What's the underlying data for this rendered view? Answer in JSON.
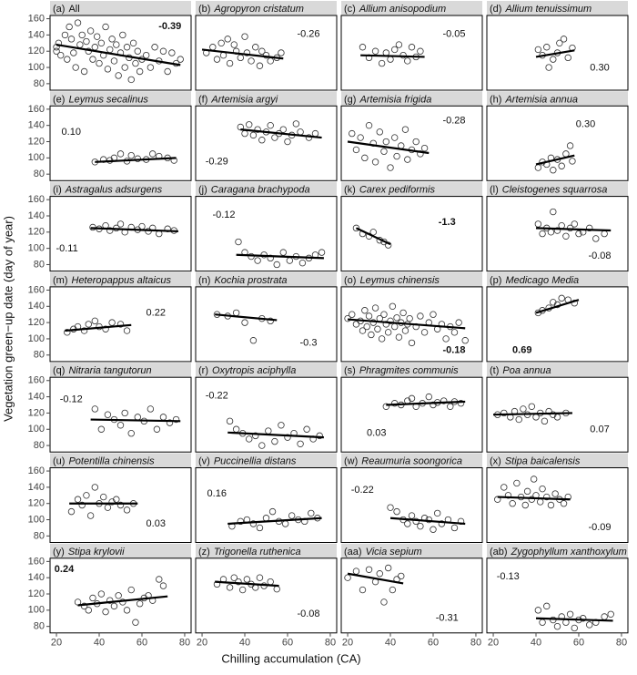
{
  "xlabel": "Chilling accumulation (CA)",
  "ylabel": "Vegetation green−up date (day of year)",
  "xlim": [
    17,
    83
  ],
  "xticks": [
    20,
    40,
    60,
    80
  ],
  "ylim": [
    72,
    164
  ],
  "yticks": [
    80,
    100,
    120,
    140,
    160
  ],
  "chart_data": [
    {
      "type": "scatter",
      "label": "(a)",
      "title": "All",
      "title_style": "normal",
      "x": [
        20,
        20,
        21,
        22,
        24,
        25,
        26,
        27,
        28,
        29,
        30,
        31,
        32,
        33,
        34,
        35,
        36,
        37,
        38,
        39,
        40,
        41,
        42,
        43,
        44,
        45,
        46,
        47,
        48,
        49,
        50,
        51,
        52,
        53,
        54,
        55,
        56,
        57,
        58,
        59,
        60,
        62,
        64,
        66,
        68,
        70,
        72,
        74,
        76,
        78
      ],
      "y": [
        120,
        125,
        130,
        115,
        140,
        110,
        150,
        135,
        118,
        100,
        155,
        128,
        140,
        95,
        132,
        120,
        145,
        110,
        125,
        138,
        105,
        130,
        115,
        150,
        98,
        122,
        135,
        108,
        128,
        90,
        118,
        140,
        100,
        125,
        112,
        85,
        130,
        105,
        120,
        95,
        110,
        115,
        100,
        125,
        108,
        120,
        95,
        118,
        105,
        110
      ],
      "fit_x": [
        20,
        78
      ],
      "fit_y": [
        128,
        103
      ],
      "annotation": "-0.39",
      "annotation_bold": true
    },
    {
      "type": "scatter",
      "label": "(b)",
      "title": "Agropyron cristatum",
      "x": [
        22,
        25,
        27,
        29,
        30,
        32,
        33,
        35,
        36,
        38,
        40,
        41,
        43,
        45,
        47,
        48,
        50,
        52,
        55,
        57
      ],
      "y": [
        118,
        125,
        110,
        130,
        115,
        135,
        105,
        128,
        120,
        112,
        138,
        118,
        108,
        125,
        102,
        120,
        115,
        108,
        112,
        118
      ],
      "fit_x": [
        20,
        58
      ],
      "fit_y": [
        122,
        111
      ],
      "annotation": "-0.26"
    },
    {
      "type": "scatter",
      "label": "(c)",
      "title": "Allium anisopodium",
      "x": [
        27,
        30,
        33,
        36,
        38,
        40,
        42,
        44,
        46,
        48,
        50,
        52,
        54
      ],
      "y": [
        125,
        112,
        120,
        105,
        118,
        110,
        122,
        128,
        115,
        108,
        125,
        113,
        120
      ],
      "fit_x": [
        26,
        56
      ],
      "fit_y": [
        115,
        113
      ],
      "annotation": "-0.05"
    },
    {
      "type": "scatter",
      "label": "(d)",
      "title": "Allium tenuissimum",
      "x": [
        41,
        43,
        45,
        46,
        48,
        50,
        51,
        53,
        55,
        57
      ],
      "y": [
        122,
        115,
        125,
        100,
        110,
        118,
        130,
        135,
        112,
        124
      ],
      "fit_x": [
        40,
        58
      ],
      "fit_y": [
        113,
        121
      ],
      "annotation": "0.30"
    },
    {
      "type": "scatter",
      "label": "(e)",
      "title": "Leymus secalinus",
      "x": [
        38,
        42,
        45,
        47,
        50,
        53,
        55,
        58,
        62,
        65,
        68,
        72,
        75
      ],
      "y": [
        95,
        98,
        97,
        100,
        105,
        96,
        103,
        99,
        98,
        105,
        102,
        100,
        97
      ],
      "fit_x": [
        38,
        76
      ],
      "fit_y": [
        95,
        100
      ],
      "annotation": "0.10"
    },
    {
      "type": "scatter",
      "label": "(f)",
      "title": "Artemisia argyi",
      "x": [
        38,
        40,
        42,
        44,
        46,
        48,
        50,
        52,
        54,
        56,
        58,
        60,
        62,
        64,
        66,
        70,
        73
      ],
      "y": [
        138,
        130,
        141,
        128,
        135,
        122,
        132,
        140,
        125,
        130,
        135,
        120,
        128,
        142,
        132,
        125,
        130
      ],
      "fit_x": [
        38,
        76
      ],
      "fit_y": [
        135,
        125
      ],
      "annotation": "-0.29"
    },
    {
      "type": "scatter",
      "label": "(g)",
      "title": "Artemisia frigida",
      "x": [
        22,
        24,
        26,
        28,
        30,
        32,
        33,
        35,
        37,
        38,
        40,
        42,
        43,
        45,
        47,
        48,
        50,
        52,
        54,
        56
      ],
      "y": [
        130,
        110,
        125,
        100,
        140,
        118,
        95,
        132,
        108,
        120,
        88,
        125,
        102,
        115,
        135,
        98,
        110,
        120,
        105,
        112
      ],
      "fit_x": [
        20,
        58
      ],
      "fit_y": [
        120,
        106
      ],
      "annotation": "-0.28"
    },
    {
      "type": "scatter",
      "label": "(h)",
      "title": "Artemisia annua",
      "x": [
        41,
        43,
        45,
        47,
        48,
        50,
        52,
        54,
        56,
        57
      ],
      "y": [
        88,
        95,
        92,
        100,
        85,
        98,
        90,
        105,
        115,
        96
      ],
      "fit_x": [
        40,
        58
      ],
      "fit_y": [
        92,
        103
      ],
      "annotation": "0.30"
    },
    {
      "type": "scatter",
      "label": "(i)",
      "title": "Astragalus adsurgens",
      "x": [
        37,
        40,
        43,
        45,
        48,
        50,
        52,
        55,
        58,
        60,
        63,
        65,
        68,
        72,
        75
      ],
      "y": [
        126,
        124,
        128,
        122,
        125,
        130,
        120,
        126,
        123,
        127,
        121,
        125,
        118,
        124,
        122
      ],
      "fit_x": [
        36,
        77
      ],
      "fit_y": [
        125,
        121
      ],
      "annotation": "-0.11"
    },
    {
      "type": "scatter",
      "label": "(j)",
      "title": "Caragana brachypoda",
      "x": [
        37,
        40,
        43,
        46,
        49,
        52,
        55,
        58,
        61,
        64,
        67,
        70,
        73,
        76
      ],
      "y": [
        108,
        95,
        90,
        85,
        92,
        88,
        80,
        95,
        85,
        90,
        82,
        88,
        92,
        95
      ],
      "fit_x": [
        36,
        77
      ],
      "fit_y": [
        92,
        88
      ],
      "annotation": "-0.12"
    },
    {
      "type": "scatter",
      "label": "(k)",
      "title": "Carex pediformis",
      "x": [
        24,
        27,
        30,
        32,
        35,
        37,
        39
      ],
      "y": [
        125,
        118,
        115,
        120,
        110,
        108,
        104
      ],
      "fit_x": [
        24,
        40
      ],
      "fit_y": [
        125,
        105
      ],
      "annotation": "-1.3",
      "annotation_bold": true
    },
    {
      "type": "scatter",
      "label": "(l)",
      "title": "Cleistogenes squarrosa",
      "x": [
        41,
        43,
        45,
        47,
        48,
        50,
        52,
        54,
        56,
        58,
        60,
        62,
        65,
        68,
        72
      ],
      "y": [
        130,
        118,
        125,
        120,
        145,
        122,
        128,
        115,
        125,
        130,
        118,
        120,
        125,
        112,
        118
      ],
      "fit_x": [
        40,
        75
      ],
      "fit_y": [
        125,
        122
      ],
      "annotation": "-0.08"
    },
    {
      "type": "scatter",
      "label": "(m)",
      "title": "Heteropappus altaicus",
      "x": [
        25,
        28,
        30,
        33,
        35,
        38,
        40,
        43,
        46,
        50,
        53
      ],
      "y": [
        108,
        112,
        115,
        110,
        118,
        122,
        115,
        112,
        120,
        118,
        110
      ],
      "fit_x": [
        24,
        55
      ],
      "fit_y": [
        110,
        117
      ],
      "annotation": "0.22"
    },
    {
      "type": "scatter",
      "label": "(n)",
      "title": "Kochia prostrata",
      "x": [
        27,
        32,
        36,
        40,
        44,
        48,
        52
      ],
      "y": [
        130,
        128,
        132,
        120,
        98,
        125,
        122
      ],
      "fit_x": [
        26,
        55
      ],
      "fit_y": [
        130,
        123
      ],
      "annotation": "-0.3"
    },
    {
      "type": "scatter",
      "label": "(o)",
      "title": "Leymus chinensis",
      "x": [
        20,
        22,
        24,
        26,
        27,
        28,
        29,
        30,
        31,
        32,
        33,
        34,
        35,
        36,
        37,
        38,
        39,
        40,
        41,
        42,
        43,
        44,
        45,
        46,
        47,
        48,
        49,
        50,
        52,
        54,
        56,
        58,
        60,
        62,
        64,
        66,
        68,
        70,
        72,
        75
      ],
      "y": [
        125,
        130,
        118,
        122,
        110,
        135,
        115,
        128,
        105,
        120,
        138,
        112,
        125,
        100,
        130,
        118,
        108,
        122,
        140,
        115,
        126,
        102,
        120,
        132,
        110,
        118,
        125,
        95,
        115,
        128,
        108,
        120,
        130,
        112,
        118,
        100,
        115,
        108,
        120,
        98
      ],
      "fit_x": [
        20,
        75
      ],
      "fit_y": [
        124,
        113
      ],
      "annotation": "-0.18",
      "annotation_bold": true
    },
    {
      "type": "scatter",
      "label": "(p)",
      "title": "Medicago Media",
      "x": [
        41,
        43,
        46,
        48,
        50,
        52,
        55,
        58
      ],
      "y": [
        132,
        135,
        138,
        145,
        142,
        150,
        148,
        144
      ],
      "fit_x": [
        40,
        60
      ],
      "fit_y": [
        132,
        148
      ],
      "annotation": "0.69",
      "annotation_bold": true
    },
    {
      "type": "scatter",
      "label": "(q)",
      "title": "Nitraria tangutorun",
      "x": [
        38,
        41,
        44,
        47,
        50,
        52,
        55,
        58,
        61,
        64,
        67,
        70,
        73,
        76
      ],
      "y": [
        125,
        100,
        118,
        112,
        105,
        120,
        95,
        115,
        110,
        125,
        100,
        115,
        108,
        112
      ],
      "fit_x": [
        36,
        78
      ],
      "fit_y": [
        112,
        110
      ],
      "annotation": "-0.12"
    },
    {
      "type": "scatter",
      "label": "(r)",
      "title": "Oxytropis aciphylla",
      "x": [
        33,
        36,
        39,
        42,
        45,
        48,
        51,
        54,
        57,
        60,
        63,
        66,
        69,
        72,
        75
      ],
      "y": [
        110,
        100,
        95,
        88,
        92,
        80,
        98,
        85,
        105,
        90,
        95,
        82,
        100,
        88,
        92
      ],
      "fit_x": [
        32,
        77
      ],
      "fit_y": [
        96,
        90
      ],
      "annotation": "-0.22"
    },
    {
      "type": "scatter",
      "label": "(s)",
      "title": "Phragmites communis",
      "x": [
        38,
        42,
        45,
        48,
        50,
        52,
        55,
        58,
        60,
        62,
        65,
        68,
        70,
        73
      ],
      "y": [
        128,
        132,
        130,
        135,
        138,
        128,
        132,
        140,
        130,
        133,
        135,
        128,
        134,
        132
      ],
      "fit_x": [
        38,
        75
      ],
      "fit_y": [
        130,
        134
      ],
      "annotation": "0.03"
    },
    {
      "type": "scatter",
      "label": "(t)",
      "title": "Poa annua",
      "x": [
        22,
        25,
        28,
        30,
        32,
        34,
        36,
        38,
        40,
        42,
        44,
        46,
        48,
        50,
        54
      ],
      "y": [
        118,
        120,
        115,
        122,
        112,
        125,
        118,
        128,
        115,
        120,
        110,
        122,
        118,
        115,
        120
      ],
      "fit_x": [
        20,
        57
      ],
      "fit_y": [
        118,
        120
      ],
      "annotation": "0.07"
    },
    {
      "type": "scatter",
      "label": "(u)",
      "title": "Potentilla chinensis",
      "x": [
        27,
        30,
        32,
        34,
        36,
        38,
        40,
        42,
        44,
        46,
        48,
        50,
        53,
        56
      ],
      "y": [
        110,
        125,
        118,
        130,
        105,
        140,
        120,
        128,
        115,
        122,
        125,
        118,
        112,
        120
      ],
      "fit_x": [
        26,
        58
      ],
      "fit_y": [
        120,
        120
      ],
      "annotation": "0.03"
    },
    {
      "type": "scatter",
      "label": "(v)",
      "title": "Puccinellia distans",
      "x": [
        34,
        38,
        41,
        44,
        47,
        50,
        53,
        56,
        59,
        62,
        65,
        68,
        71,
        74
      ],
      "y": [
        92,
        98,
        100,
        95,
        90,
        102,
        110,
        98,
        95,
        105,
        100,
        98,
        108,
        102
      ],
      "fit_x": [
        32,
        76
      ],
      "fit_y": [
        95,
        102
      ],
      "annotation": "0.16"
    },
    {
      "type": "scatter",
      "label": "(w)",
      "title": "Reaumuria soongorica",
      "x": [
        40,
        43,
        46,
        48,
        50,
        52,
        54,
        56,
        58,
        60,
        62,
        64,
        67,
        70,
        73
      ],
      "y": [
        115,
        110,
        100,
        95,
        105,
        98,
        92,
        102,
        100,
        88,
        108,
        95,
        100,
        90,
        98
      ],
      "fit_x": [
        40,
        75
      ],
      "fit_y": [
        102,
        95
      ],
      "annotation": "-0.22"
    },
    {
      "type": "scatter",
      "label": "(x)",
      "title": "Stipa baicalensis",
      "x": [
        22,
        25,
        27,
        29,
        31,
        33,
        35,
        36,
        38,
        39,
        40,
        42,
        43,
        45,
        47,
        49,
        51,
        53,
        55
      ],
      "y": [
        125,
        140,
        130,
        120,
        145,
        128,
        118,
        135,
        125,
        150,
        130,
        122,
        138,
        128,
        118,
        132,
        125,
        120,
        128
      ],
      "fit_x": [
        22,
        56
      ],
      "fit_y": [
        128,
        125
      ],
      "annotation": "-0.09"
    },
    {
      "type": "scatter",
      "label": "(y)",
      "title": "Stipa krylovii",
      "x": [
        30,
        33,
        35,
        37,
        39,
        41,
        43,
        45,
        47,
        49,
        51,
        53,
        55,
        57,
        59,
        61,
        63,
        65,
        68,
        70
      ],
      "y": [
        110,
        105,
        100,
        115,
        108,
        120,
        98,
        112,
        105,
        118,
        110,
        100,
        125,
        85,
        108,
        115,
        118,
        112,
        138,
        130
      ],
      "fit_x": [
        30,
        72
      ],
      "fit_y": [
        106,
        117
      ],
      "annotation": "0.24",
      "annotation_bold": true
    },
    {
      "type": "scatter",
      "label": "(z)",
      "title": "Trigonella ruthenica",
      "x": [
        27,
        30,
        33,
        35,
        37,
        39,
        41,
        43,
        45,
        47,
        49,
        52,
        55
      ],
      "y": [
        132,
        138,
        128,
        140,
        135,
        125,
        138,
        132,
        128,
        140,
        130,
        135,
        126
      ],
      "fit_x": [
        26,
        56
      ],
      "fit_y": [
        135,
        130
      ],
      "annotation": "-0.08"
    },
    {
      "type": "scatter",
      "label": "(aa)",
      "title": "Vicia sepium",
      "x": [
        20,
        24,
        27,
        30,
        33,
        35,
        37,
        39,
        41,
        43,
        45
      ],
      "y": [
        140,
        148,
        125,
        150,
        135,
        145,
        110,
        152,
        125,
        138,
        142
      ],
      "fit_x": [
        20,
        46
      ],
      "fit_y": [
        145,
        133
      ],
      "annotation": "-0.31"
    },
    {
      "type": "scatter",
      "label": "(ab)",
      "title": "Zygophyllum xanthoxylum",
      "x": [
        41,
        43,
        45,
        48,
        50,
        52,
        54,
        56,
        58,
        60,
        62,
        65,
        68,
        72,
        75
      ],
      "y": [
        100,
        85,
        105,
        88,
        80,
        92,
        85,
        95,
        78,
        88,
        90,
        82,
        85,
        92,
        95
      ],
      "fit_x": [
        40,
        76
      ],
      "fit_y": [
        90,
        87
      ],
      "annotation": "-0.13"
    }
  ]
}
